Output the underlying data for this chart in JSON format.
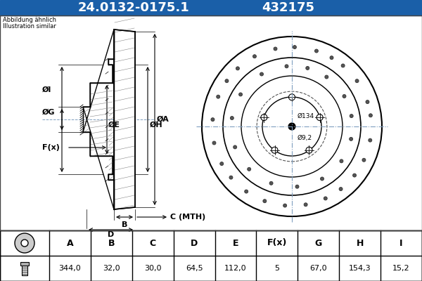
{
  "title_part1": "24.0132-0175.1",
  "title_part2": "432175",
  "title_bg": "#1a5fa8",
  "title_fg": "#ffffff",
  "bg_color": "#ffffff",
  "table_header": [
    "A",
    "B",
    "C",
    "D",
    "E",
    "F(x)",
    "G",
    "H",
    "I"
  ],
  "table_values": [
    "344,0",
    "32,0",
    "30,0",
    "64,5",
    "112,0",
    "5",
    "67,0",
    "154,3",
    "15,2"
  ],
  "note_line1": "Abbildung ähnlich",
  "note_line2": "Illustration similar",
  "label_A": "ØA",
  "label_E": "ØE",
  "label_H": "ØH",
  "label_G": "ØG",
  "label_I": "ØI",
  "label_B": "B",
  "label_C": "C (MTH)",
  "label_D": "D",
  "label_F": "F(x)",
  "dim_134": "Ø134",
  "dim_92": "Ø9,2",
  "lc": "#000000",
  "dim_color": "#000000",
  "crosshair_color": "#7f9fc0"
}
